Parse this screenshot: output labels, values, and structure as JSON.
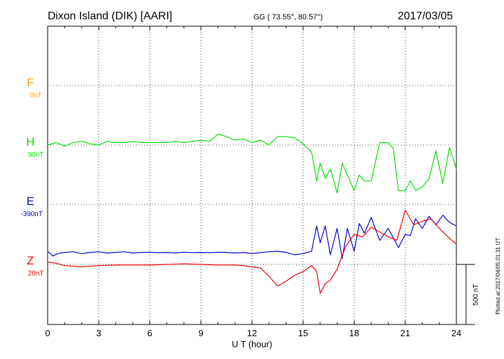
{
  "header": {
    "station": "Dixon Island (DIK)  [AARI]",
    "coords": "GG ( 73.55°,  80.57°)",
    "date": "2017/03/05"
  },
  "footer_note": "Plotted at 2017/04/05 01:31  UT",
  "scale_bar_label": "500 nT",
  "colors": {
    "F": "#ffa500",
    "H": "#00e000",
    "E": "#0000cc",
    "Z": "#ee0000"
  },
  "chart_data": {
    "type": "line",
    "title": "Dixon Island (DIK)  [AARI]",
    "xlabel": "U T (hour)",
    "xlim": [
      0,
      24
    ],
    "xticks": [
      0,
      3,
      6,
      9,
      12,
      15,
      18,
      21,
      24
    ],
    "xtick_labels": [
      "0",
      "3",
      "6",
      "9",
      "12",
      "15",
      "18",
      "21",
      "24"
    ],
    "units": "nT",
    "scale_bar_nT": 500,
    "grid": true,
    "series": [
      {
        "name": "F",
        "baseline_label": "0nT",
        "color": "#ffa500",
        "x": [],
        "y": []
      },
      {
        "name": "H",
        "baseline_label": "90nT",
        "color": "#00e000",
        "x": [
          0,
          0.5,
          1,
          1.5,
          2,
          2.5,
          3,
          3.5,
          4,
          4.5,
          5,
          5.5,
          6,
          6.5,
          7,
          7.5,
          8,
          8.5,
          9,
          9.5,
          10,
          10.5,
          11,
          11.5,
          12,
          12.5,
          13,
          13.5,
          14,
          14.5,
          15,
          15.5,
          15.8,
          16,
          16.3,
          16.6,
          17,
          17.3,
          17.6,
          18,
          18.3,
          18.6,
          19,
          19.5,
          20,
          20.3,
          20.6,
          21,
          21.3,
          21.6,
          22,
          22.4,
          22.8,
          23.2,
          23.6,
          24
        ],
        "y": [
          0,
          20,
          -10,
          20,
          30,
          10,
          0,
          30,
          20,
          20,
          30,
          20,
          20,
          20,
          20,
          30,
          20,
          30,
          40,
          30,
          90,
          70,
          40,
          50,
          20,
          40,
          0,
          70,
          70,
          60,
          10,
          -60,
          -300,
          -150,
          -280,
          -200,
          -400,
          -150,
          -250,
          -380,
          -250,
          -300,
          -300,
          20,
          20,
          -30,
          -380,
          -380,
          -300,
          -380,
          -350,
          -280,
          -50,
          -320,
          -20,
          -200
        ]
      },
      {
        "name": "E",
        "baseline_label": "-390nT",
        "color": "#0000cc",
        "x": [
          0,
          0.3,
          0.6,
          1,
          1.5,
          2,
          2.5,
          3,
          3.5,
          4,
          4.5,
          5,
          5.5,
          6,
          6.5,
          7,
          7.5,
          8,
          8.5,
          9,
          9.5,
          10,
          10.5,
          11,
          11.5,
          12,
          12.5,
          13,
          13.5,
          14,
          14.5,
          15,
          15.5,
          15.8,
          16,
          16.3,
          16.6,
          17,
          17.3,
          17.6,
          18,
          18.3,
          18.6,
          19,
          19.5,
          20,
          20.3,
          20.6,
          21,
          21.3,
          21.6,
          22,
          22.4,
          22.8,
          23.2,
          23.6,
          24
        ],
        "y": [
          -390,
          -430,
          -410,
          -400,
          -395,
          -410,
          -400,
          -395,
          -405,
          -400,
          -395,
          -405,
          -400,
          -398,
          -402,
          -400,
          -405,
          -398,
          -402,
          -400,
          -402,
          -398,
          -400,
          -405,
          -400,
          -410,
          -402,
          -395,
          -390,
          -400,
          -420,
          -410,
          -390,
          -180,
          -320,
          -180,
          -420,
          -200,
          -450,
          -200,
          -390,
          -160,
          -240,
          -110,
          -300,
          -200,
          -280,
          -360,
          -250,
          -260,
          -120,
          -200,
          -100,
          -170,
          -90,
          -150,
          -180
        ]
      },
      {
        "name": "Z",
        "baseline_label": "20nT",
        "color": "#ee0000",
        "x": [
          0,
          0.5,
          1,
          1.5,
          2,
          3,
          4,
          5,
          6,
          7,
          8,
          9,
          10,
          11,
          11.5,
          12,
          12.5,
          13,
          13.5,
          14,
          14.5,
          15,
          15.5,
          15.8,
          16,
          16.3,
          16.6,
          17,
          17.5,
          18,
          18.5,
          19,
          19.5,
          20,
          20.5,
          21,
          21.5,
          22,
          22.5,
          23,
          23.5,
          24
        ],
        "y": [
          20,
          10,
          -10,
          -15,
          -20,
          -10,
          -5,
          -5,
          -5,
          0,
          5,
          0,
          -5,
          -5,
          -10,
          -20,
          -30,
          -100,
          -180,
          -140,
          -90,
          -60,
          -10,
          -60,
          -240,
          -160,
          -130,
          -40,
          150,
          250,
          230,
          310,
          270,
          230,
          200,
          450,
          330,
          360,
          380,
          300,
          230,
          170
        ]
      }
    ]
  }
}
